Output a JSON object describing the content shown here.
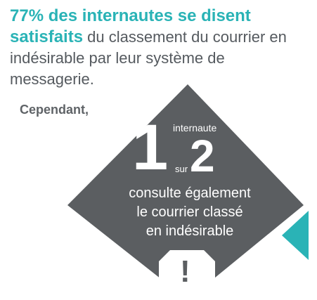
{
  "headline": {
    "highlight_1": "77% des internautes se disent",
    "highlight_2": "satisfaits",
    "rest": " du classement du courrier en indésirable par leur système de messagerie."
  },
  "intro": "Cependant,",
  "stat": {
    "numerator": "1",
    "unit": "internaute",
    "separator": "sur",
    "denominator": "2"
  },
  "caption": {
    "line1": "consulte également",
    "line2": "le courrier classé",
    "line3": "en indésirable"
  },
  "icons": {
    "warning": "exclamation-icon",
    "pointer": "triangle-pointer"
  },
  "colors": {
    "accent": "#2ab3b6",
    "diamond": "#5b5e61",
    "text": "#555a5f"
  }
}
